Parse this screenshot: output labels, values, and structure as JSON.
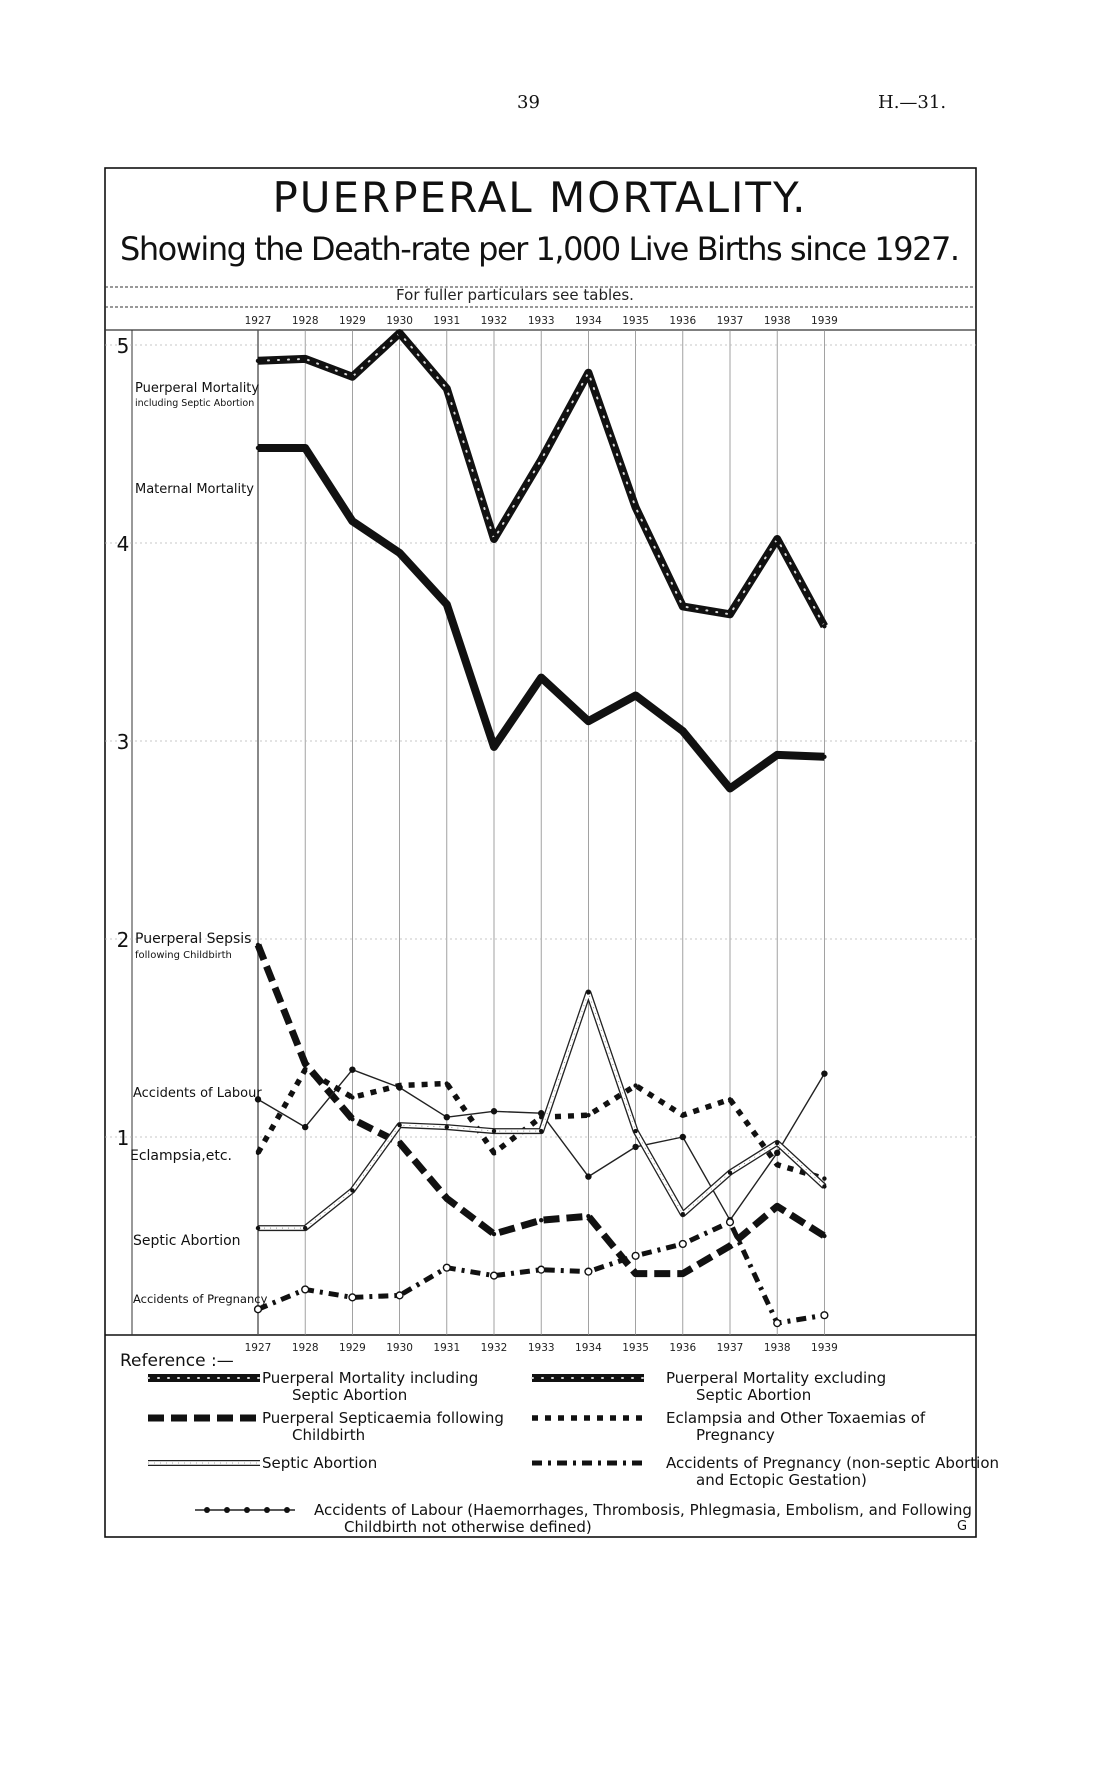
{
  "header": {
    "page_number": "39",
    "document_ref": "H.—31."
  },
  "chart_data": {
    "type": "line",
    "title": "PUERPERAL MORTALITY.",
    "subtitle": "Showing the Death-rate per 1,000 Live Births since 1927.",
    "note": "For fuller particulars see tables.",
    "x": [
      "1927",
      "1928",
      "1929",
      "1930",
      "1931",
      "1932",
      "1933",
      "1934",
      "1935",
      "1936",
      "1937",
      "1938",
      "1939"
    ],
    "y_ticks": [
      "5",
      "4",
      "3",
      "2",
      "1"
    ],
    "ylim": [
      0,
      5.15
    ],
    "grid": true,
    "legend_position": "bottom",
    "in_chart_labels": {
      "puerperal_incl": [
        "Puerperal Mortality",
        "including Septic Abortion"
      ],
      "maternal": "Maternal Mortality",
      "sepsis": [
        "Puerperal Sepsis",
        "following Childbirth"
      ],
      "labour": "Accidents of Labour",
      "eclampsia": "Eclampsia,etc.",
      "septic": "Septic Abortion",
      "pregnancy": "Accidents of Pregnancy"
    },
    "series": [
      {
        "key": "puerperal_incl",
        "values": [
          4.92,
          4.93,
          4.84,
          5.06,
          4.78,
          4.02,
          4.42,
          4.86,
          4.18,
          3.68,
          3.64,
          4.02,
          3.58
        ],
        "color": "#1a1a1a",
        "style": "thick-dotted"
      },
      {
        "key": "maternal",
        "values": [
          4.48,
          4.48,
          4.11,
          3.95,
          3.69,
          2.97,
          3.32,
          3.1,
          3.23,
          3.05,
          2.76,
          2.93,
          2.92
        ],
        "color": "#1a1a1a",
        "style": "thick"
      },
      {
        "key": "sepsis",
        "values": [
          1.97,
          1.37,
          1.09,
          0.97,
          0.69,
          0.51,
          0.58,
          0.6,
          0.31,
          0.31,
          0.45,
          0.65,
          0.5
        ],
        "color": "#1a1a1a",
        "style": "heavy-dash"
      },
      {
        "key": "labour",
        "values": [
          1.19,
          1.05,
          1.34,
          1.25,
          1.1,
          1.13,
          1.12,
          0.8,
          0.95,
          1.0,
          0.58,
          0.92,
          1.32
        ],
        "color": "#1a1a1a",
        "style": "dot-dash"
      },
      {
        "key": "eclampsia",
        "values": [
          0.92,
          1.34,
          1.2,
          1.26,
          1.27,
          0.92,
          1.1,
          1.11,
          1.26,
          1.11,
          1.19,
          0.86,
          0.79
        ],
        "color": "#1a1a1a",
        "style": "small-dash"
      },
      {
        "key": "septic",
        "values": [
          0.54,
          0.54,
          0.73,
          1.06,
          1.05,
          1.03,
          1.03,
          1.73,
          1.03,
          0.61,
          0.82,
          0.97,
          0.75
        ],
        "color": "#1a1a1a",
        "style": "double-line"
      },
      {
        "key": "pregnancy",
        "values": [
          0.13,
          0.23,
          0.19,
          0.2,
          0.34,
          0.3,
          0.33,
          0.32,
          0.4,
          0.46,
          0.57,
          0.06,
          0.1
        ],
        "color": "#1a1a1a",
        "style": "dash-dot-open"
      }
    ]
  },
  "legend": {
    "heading": "Reference :—",
    "items": [
      {
        "key": "puerperal_incl",
        "lines": [
          "Puerperal Mortality including",
          "Septic Abortion"
        ]
      },
      {
        "key": "puerperal_excl",
        "lines": [
          "Puerperal Mortality excluding",
          "Septic Abortion"
        ]
      },
      {
        "key": "sepsis",
        "lines": [
          "Puerperal Septicaemia following",
          "Childbirth"
        ]
      },
      {
        "key": "eclampsia",
        "lines": [
          "Eclampsia and Other Toxaemias of",
          "Pregnancy"
        ]
      },
      {
        "key": "septic",
        "lines": [
          "Septic Abortion"
        ]
      },
      {
        "key": "pregnancy",
        "lines": [
          "Accidents of Pregnancy (non-septic Abortion",
          "and Ectopic Gestation)"
        ]
      },
      {
        "key": "labour",
        "lines": [
          "Accidents of Labour (Haemorrhages, Thrombosis, Phlegmasia, Embolism, and Following",
          "Childbirth not otherwise defined)"
        ]
      }
    ]
  },
  "corner_mark": "G"
}
